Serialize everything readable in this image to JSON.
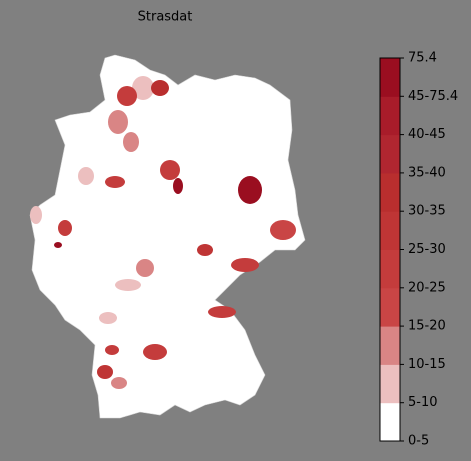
{
  "title": "Strasdat",
  "colorbar": {
    "labels": [
      "0-5",
      "5-10",
      "10-15",
      "15-20",
      "20-25",
      "25-30",
      "30-35",
      "35-40",
      "40-45",
      "45-75.4",
      "75.4"
    ],
    "colors": [
      "#ffffff",
      "#ecbfbf",
      "#d98585",
      "#c94545",
      "#c43c3c",
      "#bf3535",
      "#b92e2e",
      "#b02630",
      "#a81c2a",
      "#9a0e20"
    ]
  }
}
